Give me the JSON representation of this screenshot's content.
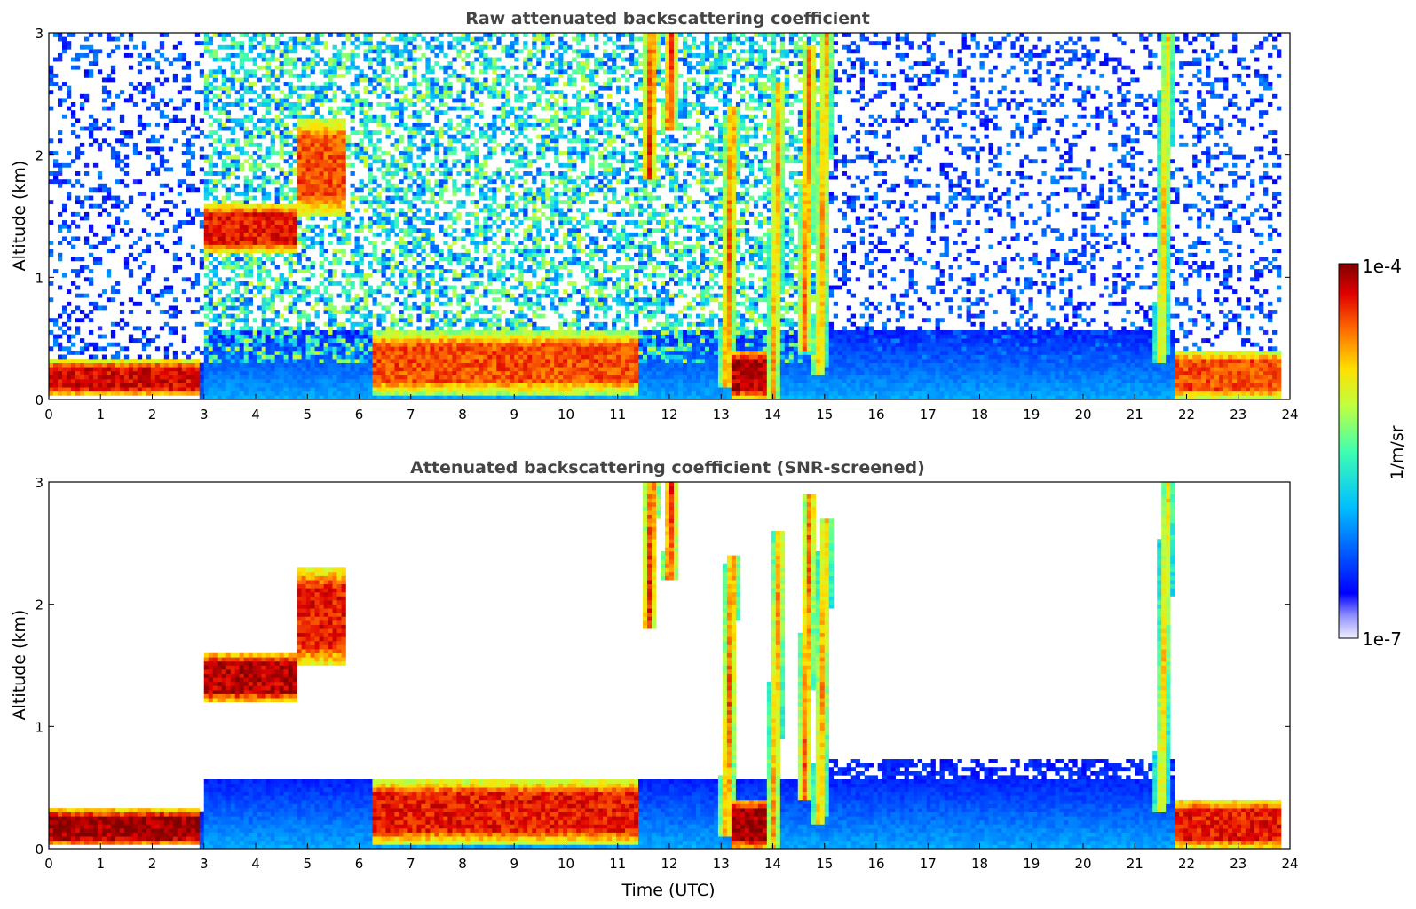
{
  "chart_data": [
    {
      "type": "heatmap",
      "title": "Raw attenuated backscattering coefficient",
      "xlabel": "",
      "ylabel": "Altitude (km)",
      "xlim": [
        0,
        24
      ],
      "ylim": [
        0,
        3
      ],
      "x_ticks": [
        0,
        1,
        2,
        3,
        4,
        5,
        6,
        7,
        8,
        9,
        10,
        11,
        12,
        13,
        14,
        15,
        16,
        17,
        18,
        19,
        20,
        21,
        22,
        23,
        24
      ],
      "y_ticks": [
        0,
        1,
        2,
        3
      ],
      "grid": false,
      "screened": false,
      "features": [
        {
          "kind": "layer",
          "t0": 0.0,
          "t1": 2.9,
          "z0": 0.03,
          "z1": 0.32,
          "level": 0.92
        },
        {
          "kind": "layer",
          "t0": 6.3,
          "t1": 11.4,
          "z0": 0.05,
          "z1": 0.55,
          "level": 0.85
        },
        {
          "kind": "layer",
          "t0": 13.2,
          "t1": 13.9,
          "z0": 0.0,
          "z1": 0.4,
          "level": 0.95
        },
        {
          "kind": "layer",
          "t0": 21.8,
          "t1": 23.8,
          "z0": 0.0,
          "z1": 0.4,
          "level": 0.85
        },
        {
          "kind": "layer",
          "t0": 3.0,
          "t1": 4.8,
          "z0": 1.2,
          "z1": 1.6,
          "level": 0.9
        },
        {
          "kind": "layer",
          "t0": 4.8,
          "t1": 5.7,
          "z0": 1.5,
          "z1": 2.3,
          "level": 0.85
        },
        {
          "kind": "streak",
          "t": 14.0,
          "z0": 0.0,
          "z1": 2.6,
          "level": 0.8
        },
        {
          "kind": "streak",
          "t": 14.6,
          "z0": 0.4,
          "z1": 2.9,
          "level": 0.85
        },
        {
          "kind": "streak",
          "t": 14.9,
          "z0": 0.2,
          "z1": 3.0,
          "level": 0.8
        },
        {
          "kind": "streak",
          "t": 11.6,
          "z0": 1.8,
          "z1": 3.0,
          "level": 0.9
        },
        {
          "kind": "streak",
          "t": 12.0,
          "z0": 2.2,
          "z1": 3.0,
          "level": 0.9
        },
        {
          "kind": "streak",
          "t": 13.1,
          "z0": 0.1,
          "z1": 2.4,
          "level": 0.85
        },
        {
          "kind": "streak",
          "t": 21.5,
          "z0": 0.3,
          "z1": 3.0,
          "level": 0.75
        }
      ]
    },
    {
      "type": "heatmap",
      "title": "Attenuated backscattering coefficient (SNR-screened)",
      "xlabel": "Time (UTC)",
      "ylabel": "Altitude (km)",
      "xlim": [
        0,
        24
      ],
      "ylim": [
        0,
        3
      ],
      "x_ticks": [
        0,
        1,
        2,
        3,
        4,
        5,
        6,
        7,
        8,
        9,
        10,
        11,
        12,
        13,
        14,
        15,
        16,
        17,
        18,
        19,
        20,
        21,
        22,
        23,
        24
      ],
      "y_ticks": [
        0,
        1,
        2,
        3
      ],
      "grid": false,
      "screened": true,
      "features": [
        {
          "kind": "layer",
          "t0": 0.0,
          "t1": 2.9,
          "z0": 0.03,
          "z1": 0.32,
          "level": 0.97
        },
        {
          "kind": "layer",
          "t0": 6.3,
          "t1": 11.4,
          "z0": 0.05,
          "z1": 0.55,
          "level": 0.9
        },
        {
          "kind": "layer",
          "t0": 13.2,
          "t1": 13.9,
          "z0": 0.0,
          "z1": 0.4,
          "level": 0.97
        },
        {
          "kind": "layer",
          "t0": 21.8,
          "t1": 23.8,
          "z0": 0.0,
          "z1": 0.4,
          "level": 0.9
        },
        {
          "kind": "layer",
          "t0": 3.0,
          "t1": 4.8,
          "z0": 1.2,
          "z1": 1.6,
          "level": 0.95
        },
        {
          "kind": "layer",
          "t0": 4.8,
          "t1": 5.7,
          "z0": 1.5,
          "z1": 2.3,
          "level": 0.9
        },
        {
          "kind": "streak",
          "t": 14.0,
          "z0": 0.0,
          "z1": 2.6,
          "level": 0.8
        },
        {
          "kind": "streak",
          "t": 14.6,
          "z0": 0.4,
          "z1": 2.9,
          "level": 0.85
        },
        {
          "kind": "streak",
          "t": 14.9,
          "z0": 0.2,
          "z1": 2.7,
          "level": 0.8
        },
        {
          "kind": "streak",
          "t": 11.6,
          "z0": 1.8,
          "z1": 3.0,
          "level": 0.9
        },
        {
          "kind": "streak",
          "t": 12.0,
          "z0": 2.2,
          "z1": 3.0,
          "level": 0.9
        },
        {
          "kind": "streak",
          "t": 13.1,
          "z0": 0.1,
          "z1": 2.4,
          "level": 0.85
        },
        {
          "kind": "streak",
          "t": 21.5,
          "z0": 0.3,
          "z1": 3.0,
          "level": 0.75
        }
      ]
    }
  ],
  "colorbar": {
    "label": "1/m/sr",
    "max_label": "1e-4",
    "min_label": "1e-7",
    "range": [
      1e-07,
      0.0001
    ],
    "scale": "log",
    "colormap": "jet"
  }
}
